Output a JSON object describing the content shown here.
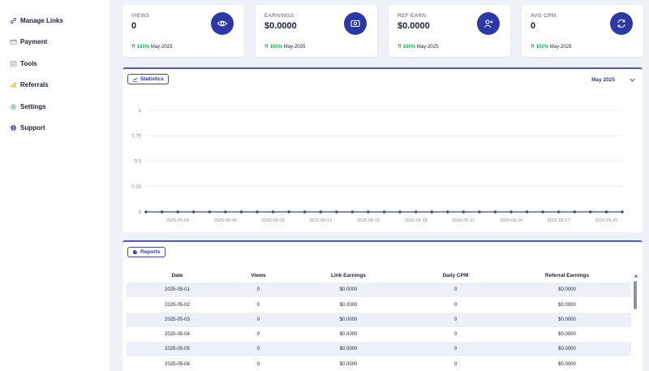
{
  "sidebar": {
    "items": [
      {
        "label": "Manage Links",
        "icon": "link-icon"
      },
      {
        "label": "Payment",
        "icon": "credit-card-icon"
      },
      {
        "label": "Tools",
        "icon": "tools-icon"
      },
      {
        "label": "Referrals",
        "icon": "referrals-icon"
      },
      {
        "label": "Settings",
        "icon": "gear-icon"
      },
      {
        "label": "Support",
        "icon": "support-icon"
      }
    ]
  },
  "cards": [
    {
      "label": "VIEWS",
      "value": "0",
      "growth": "100%",
      "period": "May-2025",
      "icon": "eye-icon"
    },
    {
      "label": "EARNINGS",
      "value": "$0.0000",
      "growth": "100%",
      "period": "May-2025",
      "icon": "money-icon"
    },
    {
      "label": "REF EARN",
      "value": "$0.0000",
      "growth": "100%",
      "period": "May-2025",
      "icon": "user-plus-icon"
    },
    {
      "label": "AVG CPM",
      "value": "0",
      "growth": "100%",
      "period": "May-2025",
      "icon": "refresh-icon"
    }
  ],
  "statistics": {
    "button_label": "Statistics",
    "month": "May 2025"
  },
  "chart_data": {
    "type": "line",
    "ylim": [
      0,
      1
    ],
    "yticks": [
      "1",
      "0.75",
      "0.5",
      "0.25",
      "0"
    ],
    "x_labels": [
      "2025-05-03",
      "2025-05-06",
      "2025-05-09",
      "2025-05-12",
      "2025-05-15",
      "2025-05-18",
      "2025-05-21",
      "2025-05-24",
      "2025-05-27",
      "2025-05-30"
    ],
    "x": [
      "2025-05-01",
      "2025-05-02",
      "2025-05-03",
      "2025-05-04",
      "2025-05-05",
      "2025-05-06",
      "2025-05-07",
      "2025-05-08",
      "2025-05-09",
      "2025-05-10",
      "2025-05-11",
      "2025-05-12",
      "2025-05-13",
      "2025-05-14",
      "2025-05-15",
      "2025-05-16",
      "2025-05-17",
      "2025-05-18",
      "2025-05-19",
      "2025-05-20",
      "2025-05-21",
      "2025-05-22",
      "2025-05-23",
      "2025-05-24",
      "2025-05-25",
      "2025-05-26",
      "2025-05-27",
      "2025-05-28",
      "2025-05-29",
      "2025-05-30",
      "2025-05-31"
    ],
    "values": [
      0,
      0,
      0,
      0,
      0,
      0,
      0,
      0,
      0,
      0,
      0,
      0,
      0,
      0,
      0,
      0,
      0,
      0,
      0,
      0,
      0,
      0,
      0,
      0,
      0,
      0,
      0,
      0,
      0,
      0,
      0
    ],
    "line_color": "#3e479d",
    "grid": true
  },
  "reports": {
    "button_label": "Reports",
    "columns": [
      "Date",
      "Views",
      "Link Earnings",
      "Daily CPM",
      "Referral Earnings"
    ],
    "rows": [
      [
        "2025-05-01",
        "0",
        "$0.0000",
        "0",
        "$0.0000"
      ],
      [
        "2025-05-02",
        "0",
        "$0.0000",
        "0",
        "$0.0000"
      ],
      [
        "2025-05-03",
        "0",
        "$0.0000",
        "0",
        "$0.0000"
      ],
      [
        "2025-05-04",
        "0",
        "$0.0000",
        "0",
        "$0.0000"
      ],
      [
        "2025-05-05",
        "0",
        "$0.0000",
        "0",
        "$0.0000"
      ],
      [
        "2025-05-06",
        "0",
        "$0.0000",
        "0",
        "$0.0000"
      ]
    ]
  },
  "colors": {
    "accent": "#2b38a6",
    "growth": "#1fb35a",
    "background": "#eef1f8"
  }
}
